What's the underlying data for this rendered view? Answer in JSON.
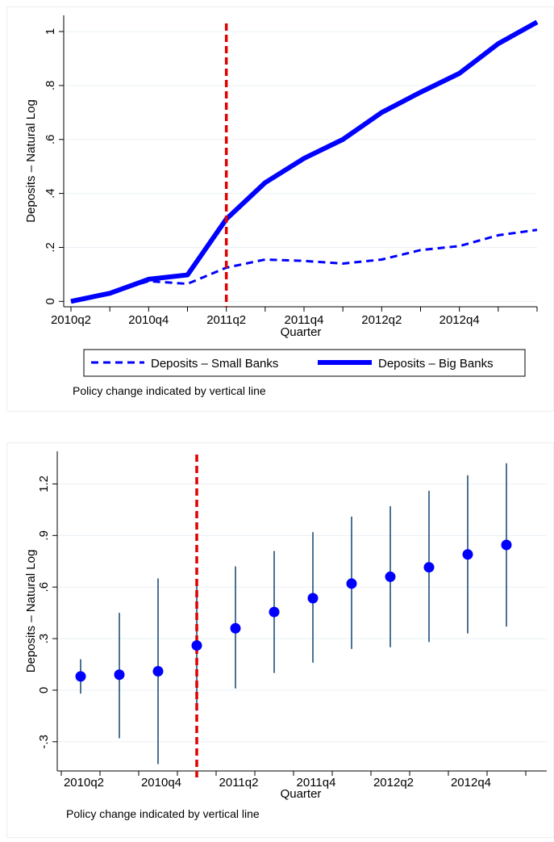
{
  "charts": [
    {
      "type": "line",
      "x_tick_labels": [
        "2010q2",
        "2010q4",
        "2011q2",
        "2011q4",
        "2012q2",
        "2012q4"
      ],
      "quarters": [
        "2010q2",
        "2010q3",
        "2010q4",
        "2011q1",
        "2011q2",
        "2011q3",
        "2011q4",
        "2012q1",
        "2012q2",
        "2012q3",
        "2012q4",
        "2013q1",
        "2013q2"
      ],
      "xlabel": "Quarter",
      "ylabel": "Deposits – Natural Log",
      "y_ticks": [
        0,
        0.2,
        0.4,
        0.6,
        0.8,
        1
      ],
      "y_tick_labels": [
        "0",
        ".2",
        ".4",
        ".6",
        ".8",
        "1"
      ],
      "ylim": [
        -0.02,
        1.06
      ],
      "policy_line_quarter": "2011q2",
      "series": [
        {
          "name": "Deposits – Small Banks",
          "style": "dashed",
          "color": "#0000ff",
          "values": [
            0.0,
            0.03,
            0.075,
            0.065,
            0.125,
            0.155,
            0.15,
            0.14,
            0.155,
            0.19,
            0.205,
            0.245,
            0.265
          ]
        },
        {
          "name": "Deposits – Big Banks",
          "style": "solid",
          "color": "#0000ff",
          "values": [
            0.0,
            0.03,
            0.082,
            0.098,
            0.305,
            0.44,
            0.53,
            0.6,
            0.7,
            0.775,
            0.845,
            0.955,
            1.035
          ]
        }
      ],
      "grid": true,
      "legend_placement": "bottom",
      "note": "Policy change indicated by vertical line"
    },
    {
      "type": "scatter",
      "x_tick_labels": [
        "2010q2",
        "2010q4",
        "2011q2",
        "2011q4",
        "2012q2",
        "2012q4"
      ],
      "quarters": [
        "2010q2",
        "2010q3",
        "2010q4",
        "2011q1",
        "2011q2",
        "2011q3",
        "2011q4",
        "2012q1",
        "2012q2",
        "2012q3",
        "2012q4",
        "2013q1"
      ],
      "xlabel": "Quarter",
      "ylabel": "Deposits – Natural Log",
      "y_ticks": [
        -0.3,
        0,
        0.3,
        0.6,
        0.9,
        1.2
      ],
      "y_tick_labels": [
        "-.3",
        "0",
        ".3",
        ".6",
        ".9",
        "1.2"
      ],
      "ylim": [
        -0.47,
        1.39
      ],
      "policy_line_quarter": "2011q1",
      "points": [
        {
          "quarter": "2010q2",
          "estimate": 0.08,
          "ci_low": -0.02,
          "ci_high": 0.18
        },
        {
          "quarter": "2010q3",
          "estimate": 0.09,
          "ci_low": -0.28,
          "ci_high": 0.45
        },
        {
          "quarter": "2010q4",
          "estimate": 0.11,
          "ci_low": -0.43,
          "ci_high": 0.65
        },
        {
          "quarter": "2011q1",
          "estimate": 0.26,
          "ci_low": -0.12,
          "ci_high": 0.63
        },
        {
          "quarter": "2011q2",
          "estimate": 0.36,
          "ci_low": 0.01,
          "ci_high": 0.72
        },
        {
          "quarter": "2011q3",
          "estimate": 0.455,
          "ci_low": 0.1,
          "ci_high": 0.81
        },
        {
          "quarter": "2011q4",
          "estimate": 0.535,
          "ci_low": 0.16,
          "ci_high": 0.92
        },
        {
          "quarter": "2012q1",
          "estimate": 0.62,
          "ci_low": 0.24,
          "ci_high": 1.01
        },
        {
          "quarter": "2012q2",
          "estimate": 0.66,
          "ci_low": 0.25,
          "ci_high": 1.07
        },
        {
          "quarter": "2012q3",
          "estimate": 0.715,
          "ci_low": 0.28,
          "ci_high": 1.16
        },
        {
          "quarter": "2012q4",
          "estimate": 0.79,
          "ci_low": 0.33,
          "ci_high": 1.25
        },
        {
          "quarter": "2013q1",
          "estimate": 0.845,
          "ci_low": 0.37,
          "ci_high": 1.32
        }
      ],
      "marker_color": "#0000ff",
      "ci_color": "#1f4e79",
      "policy_line_color": "#e00000",
      "grid": true,
      "note": "Policy change indicated by vertical line"
    }
  ]
}
